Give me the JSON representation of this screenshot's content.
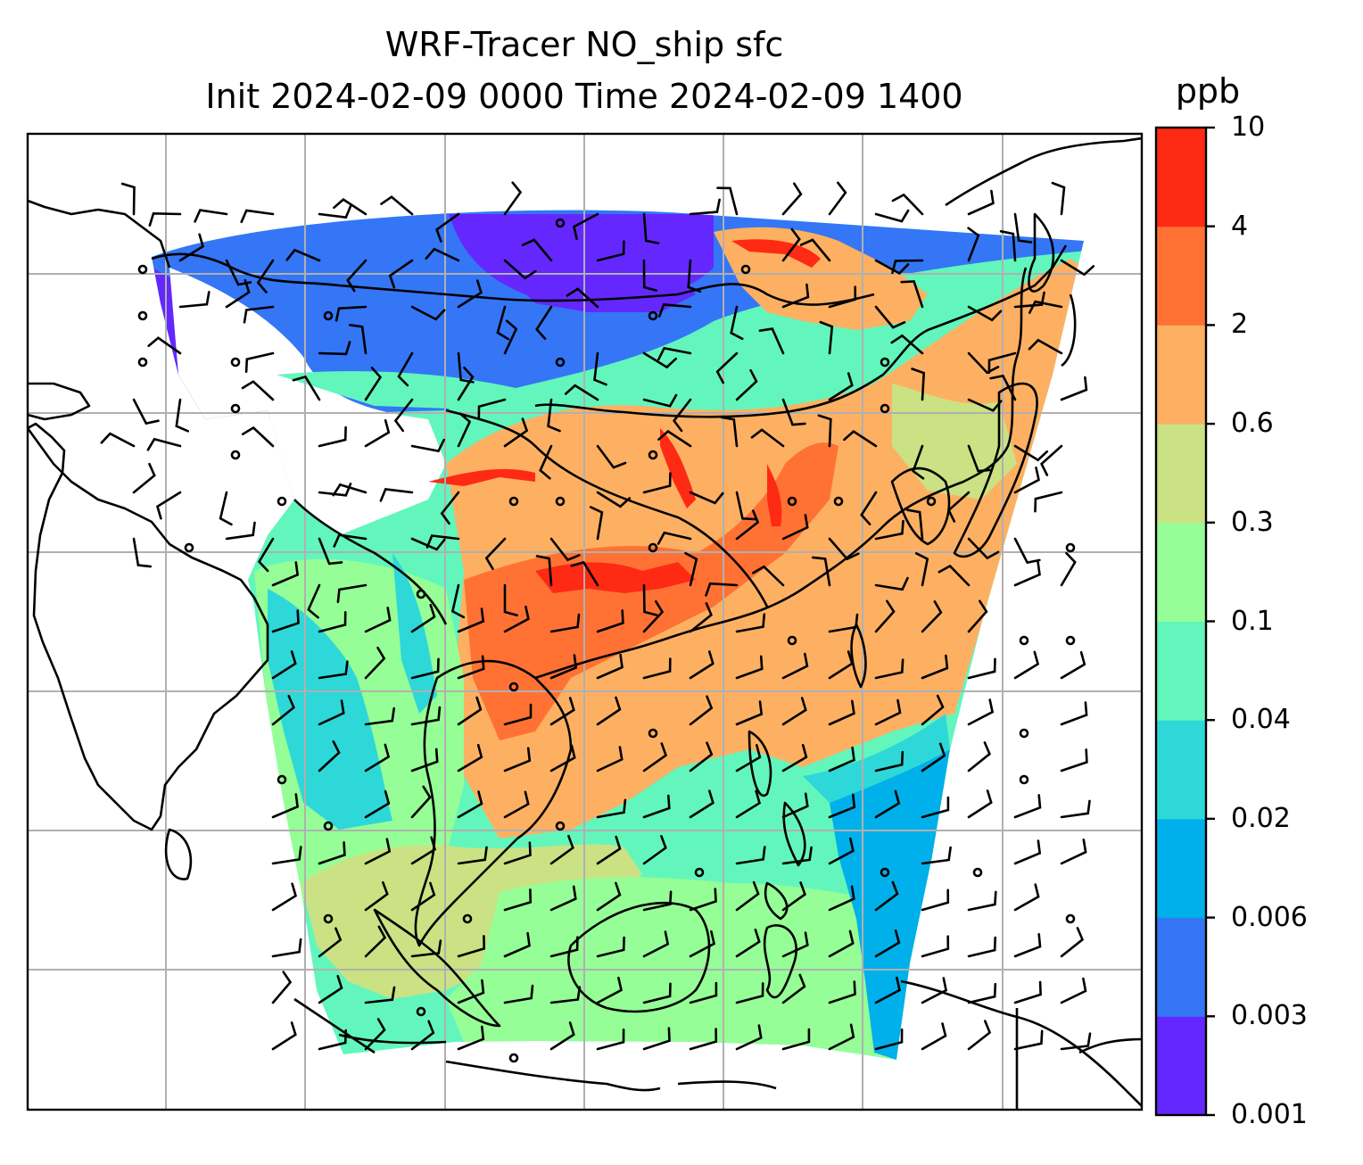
{
  "title_line1": "WRF-Tracer NO_ship sfc",
  "title_line2": "Init 2024-02-09 0000 Time 2024-02-09 1400",
  "colorbar": {
    "unit": "ppb",
    "ticks": [
      "0.001",
      "0.003",
      "0.006",
      "0.02",
      "0.04",
      "0.1",
      "0.3",
      "0.6",
      "2",
      "4",
      "10"
    ],
    "colors": [
      "#6428ff",
      "#3476f6",
      "#00b0ea",
      "#2ed8d8",
      "#62f6bd",
      "#96fe96",
      "#cae283",
      "#feb062",
      "#ff7234",
      "#ff2a14"
    ]
  },
  "map": {
    "domain_colors": {
      "north": "#3476f6",
      "northwest": "#6428ff",
      "mongolia_band": "#62f6bd",
      "china": "#feb062",
      "china_hot": "#ff7234",
      "hotspot": "#ff2a14",
      "southwest": "#96fe96",
      "bay": "#2ed8d8",
      "south_sea": "#cae283",
      "east_ocean": "#00b0ea"
    },
    "gridline_color": "#b0b0b0",
    "coastline_color": "#000000",
    "barb_color": "#000000"
  }
}
